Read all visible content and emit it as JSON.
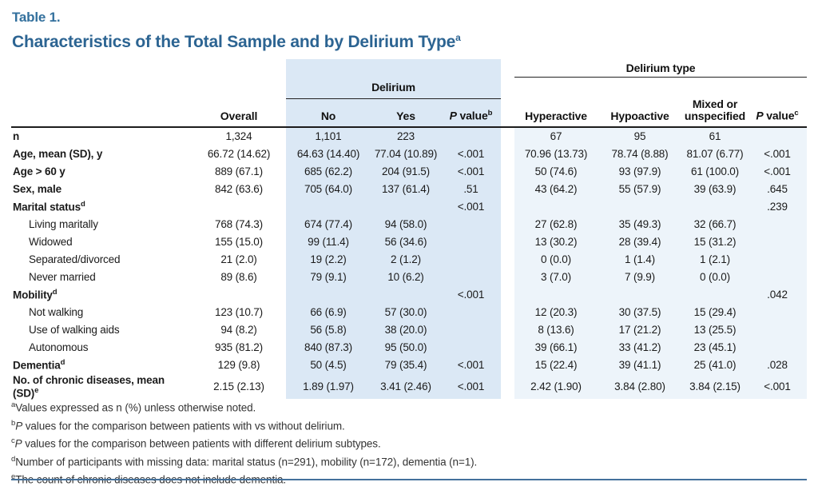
{
  "title": {
    "eyebrow": "Table 1.",
    "text": "Characteristics of the Total Sample and by Delirium Type",
    "sup": "a"
  },
  "colors": {
    "title_blue": "#2c6492",
    "delirium_block_shade": "#dbe8f5",
    "delirium_type_block_shade": "#edf4fa",
    "bottom_rule_blue": "#44719c"
  },
  "table": {
    "group_delirium": "Delirium",
    "group_delirium_type": "Delirium type",
    "col_overall": "Overall",
    "col_no": "No",
    "col_yes": "Yes",
    "col_hyperactive": "Hyperactive",
    "col_hypoactive": "Hypoactive",
    "col_mixed": "Mixed or unspecified",
    "p_italic": "P",
    "p_rest": " value",
    "p_sup_b": "b",
    "p_sup_c": "c",
    "rows": [
      {
        "label": "n",
        "sup": "",
        "indent": false,
        "values": [
          "1,324",
          "1,101",
          "223",
          "",
          "67",
          "95",
          "61",
          ""
        ]
      },
      {
        "label": "Age, mean (SD), y",
        "sup": "",
        "indent": false,
        "values": [
          "66.72 (14.62)",
          "64.63 (14.40)",
          "77.04 (10.89)",
          "<.001",
          "70.96 (13.73)",
          "78.74 (8.88)",
          "81.07 (6.77)",
          "<.001"
        ]
      },
      {
        "label": "Age > 60 y",
        "sup": "",
        "indent": false,
        "values": [
          "889 (67.1)",
          "685 (62.2)",
          "204 (91.5)",
          "<.001",
          "50 (74.6)",
          "93 (97.9)",
          "61 (100.0)",
          "<.001"
        ]
      },
      {
        "label": "Sex, male",
        "sup": "",
        "indent": false,
        "values": [
          "842 (63.6)",
          "705 (64.0)",
          "137 (61.4)",
          ".51",
          "43 (64.2)",
          "55 (57.9)",
          "39 (63.9)",
          ".645"
        ]
      },
      {
        "label": "Marital status",
        "sup": "d",
        "indent": false,
        "values": [
          "",
          "",
          "",
          "<.001",
          "",
          "",
          "",
          ".239"
        ]
      },
      {
        "label": "Living maritally",
        "sup": "",
        "indent": true,
        "values": [
          "768 (74.3)",
          "674 (77.4)",
          "94 (58.0)",
          "",
          "27 (62.8)",
          "35 (49.3)",
          "32 (66.7)",
          ""
        ]
      },
      {
        "label": "Widowed",
        "sup": "",
        "indent": true,
        "values": [
          "155 (15.0)",
          "99 (11.4)",
          "56 (34.6)",
          "",
          "13 (30.2)",
          "28 (39.4)",
          "15 (31.2)",
          ""
        ]
      },
      {
        "label": "Separated/divorced",
        "sup": "",
        "indent": true,
        "values": [
          "21 (2.0)",
          "19 (2.2)",
          "2 (1.2)",
          "",
          "0 (0.0)",
          "1 (1.4)",
          "1 (2.1)",
          ""
        ]
      },
      {
        "label": "Never married",
        "sup": "",
        "indent": true,
        "values": [
          "89 (8.6)",
          "79 (9.1)",
          "10 (6.2)",
          "",
          "3 (7.0)",
          "7 (9.9)",
          "0 (0.0)",
          ""
        ]
      },
      {
        "label": "Mobility",
        "sup": "d",
        "indent": false,
        "values": [
          "",
          "",
          "",
          "<.001",
          "",
          "",
          "",
          ".042"
        ]
      },
      {
        "label": "Not walking",
        "sup": "",
        "indent": true,
        "values": [
          "123 (10.7)",
          "66 (6.9)",
          "57 (30.0)",
          "",
          "12 (20.3)",
          "30 (37.5)",
          "15 (29.4)",
          ""
        ]
      },
      {
        "label": "Use of walking aids",
        "sup": "",
        "indent": true,
        "values": [
          "94 (8.2)",
          "56 (5.8)",
          "38 (20.0)",
          "",
          "8 (13.6)",
          "17 (21.2)",
          "13 (25.5)",
          ""
        ]
      },
      {
        "label": "Autonomous",
        "sup": "",
        "indent": true,
        "values": [
          "935 (81.2)",
          "840 (87.3)",
          "95 (50.0)",
          "",
          "39 (66.1)",
          "33 (41.2)",
          "23 (45.1)",
          ""
        ]
      },
      {
        "label": "Dementia",
        "sup": "d",
        "indent": false,
        "values": [
          "129 (9.8)",
          "50 (4.5)",
          "79 (35.4)",
          "<.001",
          "15 (22.4)",
          "39 (41.1)",
          "25 (41.0)",
          ".028"
        ]
      },
      {
        "label": "No. of chronic diseases, mean (SD)",
        "sup": "e",
        "indent": false,
        "values": [
          "2.15 (2.13)",
          "1.89 (1.97)",
          "3.41 (2.46)",
          "<.001",
          "2.42 (1.90)",
          "3.84 (2.80)",
          "3.84 (2.15)",
          "<.001"
        ]
      }
    ],
    "footnotes": [
      {
        "sup": "a",
        "italic": "",
        "text": "Values expressed as n (%) unless otherwise noted."
      },
      {
        "sup": "b",
        "italic": "P",
        "text": " values for the comparison between patients with vs without delirium."
      },
      {
        "sup": "c",
        "italic": "P",
        "text": " values for the comparison between patients with different delirium subtypes."
      },
      {
        "sup": "d",
        "italic": "",
        "text": "Number of participants with missing data: marital status (n=291), mobility (n=172), dementia (n=1)."
      },
      {
        "sup": "e",
        "italic": "",
        "text": "The count of chronic diseases does not include dementia."
      }
    ]
  }
}
